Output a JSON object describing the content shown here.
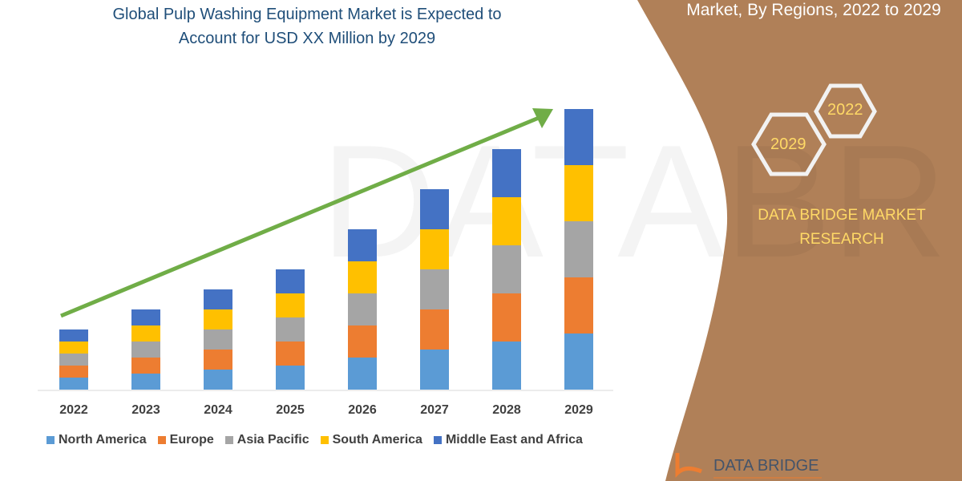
{
  "title_line1": "Global Pulp Washing Equipment Market is Expected to",
  "title_line2": "Account for USD XX Million by 2029",
  "right_panel": {
    "subtitle": "Market, By Regions, 2022 to 2029",
    "hex_labels": [
      "2022",
      "2029"
    ],
    "brand_line1": "DATA BRIDGE MARKET",
    "brand_line2": "RESEARCH",
    "logo_text": "DATA BRIDGE",
    "panel_color": "#b08058",
    "text_color": "#ffd966"
  },
  "chart_data": {
    "type": "bar",
    "stacked": true,
    "categories": [
      "2022",
      "2023",
      "2024",
      "2025",
      "2026",
      "2027",
      "2028",
      "2029"
    ],
    "series": [
      {
        "name": "North America",
        "color": "#5b9bd5",
        "values": [
          15,
          20,
          25,
          30,
          40,
          50,
          60,
          70
        ]
      },
      {
        "name": "Europe",
        "color": "#ed7d31",
        "values": [
          15,
          20,
          25,
          30,
          40,
          50,
          60,
          70
        ]
      },
      {
        "name": "Asia Pacific",
        "color": "#a5a5a5",
        "values": [
          15,
          20,
          25,
          30,
          40,
          50,
          60,
          70
        ]
      },
      {
        "name": "South America",
        "color": "#ffc000",
        "values": [
          15,
          20,
          25,
          30,
          40,
          50,
          60,
          70
        ]
      },
      {
        "name": "Middle East and Africa",
        "color": "#4472c4",
        "values": [
          15,
          20,
          25,
          30,
          40,
          50,
          60,
          70
        ]
      }
    ],
    "yaxis_shown": false,
    "grid": false,
    "legend_position": "bottom",
    "trend_arrow_color": "#70ad47"
  }
}
